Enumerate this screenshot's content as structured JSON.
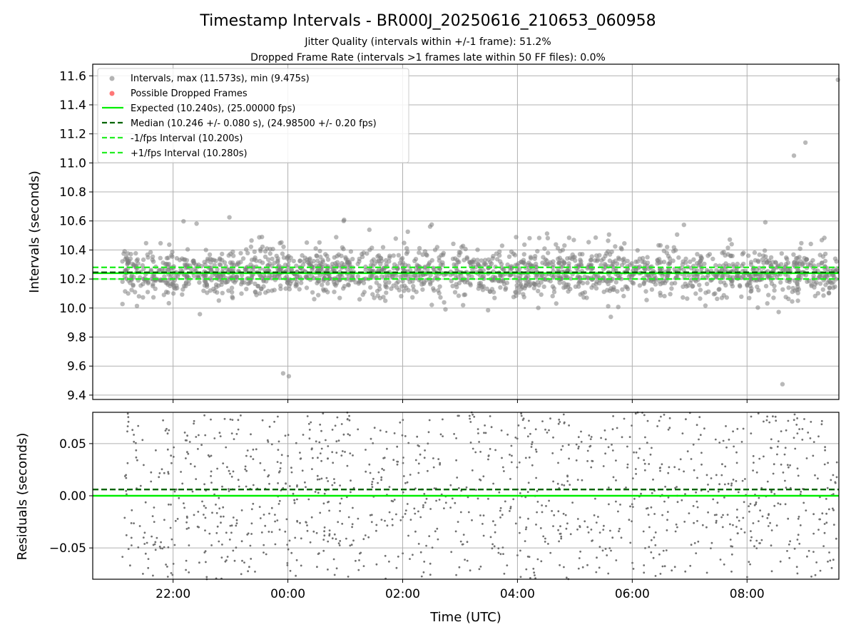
{
  "chart_data": [
    {
      "type": "scatter",
      "title": "Timestamp Intervals - BR000J_20250616_210653_060958",
      "subtitles": [
        "Jitter Quality (intervals within +/-1 frame): 51.2%",
        "Dropped Frame Rate (intervals >1 frames late within 50 FF files): 0.0%"
      ],
      "xlabel": "",
      "ylabel": "Intervals (seconds)",
      "x_unit": "hours (UTC)",
      "xlim": [
        20.6,
        9.6
      ],
      "ylim": [
        9.37,
        11.68
      ],
      "yticks": [
        9.4,
        9.6,
        9.8,
        10.0,
        10.2,
        10.4,
        10.6,
        10.8,
        11.0,
        11.2,
        11.4,
        11.6
      ],
      "ytick_labels": [
        "9.4",
        "9.6",
        "9.8",
        "10.0",
        "10.2",
        "10.4",
        "10.6",
        "10.8",
        "11.0",
        "11.2",
        "11.4",
        "11.6"
      ],
      "grid": true,
      "legend_position": "top-left",
      "series": [
        {
          "name": "Intervals, max (11.573s), min (9.475s)",
          "kind": "scatter",
          "color": "#808080",
          "x_start": "21:07",
          "x_end": "09:35",
          "center": 10.246,
          "spread": 0.08,
          "max": 11.573,
          "min": 9.475
        },
        {
          "name": "Possible Dropped Frames",
          "kind": "scatter",
          "color": "#ff5555",
          "count": 0
        },
        {
          "name": "Expected (10.240s), (25.00000 fps)",
          "kind": "hline",
          "value": 10.24,
          "color": "#00ee00",
          "style": "solid"
        },
        {
          "name": "Median (10.246 +/- 0.080 s), (24.98500 +/- 0.20 fps)",
          "kind": "hline",
          "value": 10.246,
          "color": "#006400",
          "style": "dashed"
        },
        {
          "name": "-1/fps Interval (10.200s)",
          "kind": "hline",
          "value": 10.2,
          "color": "#22ee22",
          "style": "dashed"
        },
        {
          "name": "+1/fps Interval (10.280s)",
          "kind": "hline",
          "value": 10.28,
          "color": "#22ee22",
          "style": "dashed"
        }
      ]
    },
    {
      "type": "scatter",
      "title": "",
      "xlabel": "Time (UTC)",
      "ylabel": "Residuals (seconds)",
      "xlim": [
        20.6,
        9.6
      ],
      "ylim": [
        -0.08,
        0.08
      ],
      "xticks": [
        "22:00",
        "00:00",
        "02:00",
        "04:00",
        "06:00",
        "08:00"
      ],
      "xtick_hours": [
        22,
        0,
        2,
        4,
        6,
        8
      ],
      "yticks": [
        -0.05,
        0.0,
        0.05
      ],
      "ytick_labels": [
        "−0.05",
        "0.00",
        "0.05"
      ],
      "grid": true,
      "series": [
        {
          "kind": "scatter",
          "color": "#707070",
          "description": "intervals minus expected"
        },
        {
          "kind": "hline",
          "value": 0.0,
          "color": "#00ee00",
          "style": "solid"
        },
        {
          "kind": "hline",
          "value": 0.006,
          "color": "#006400",
          "style": "dashed"
        }
      ]
    }
  ]
}
